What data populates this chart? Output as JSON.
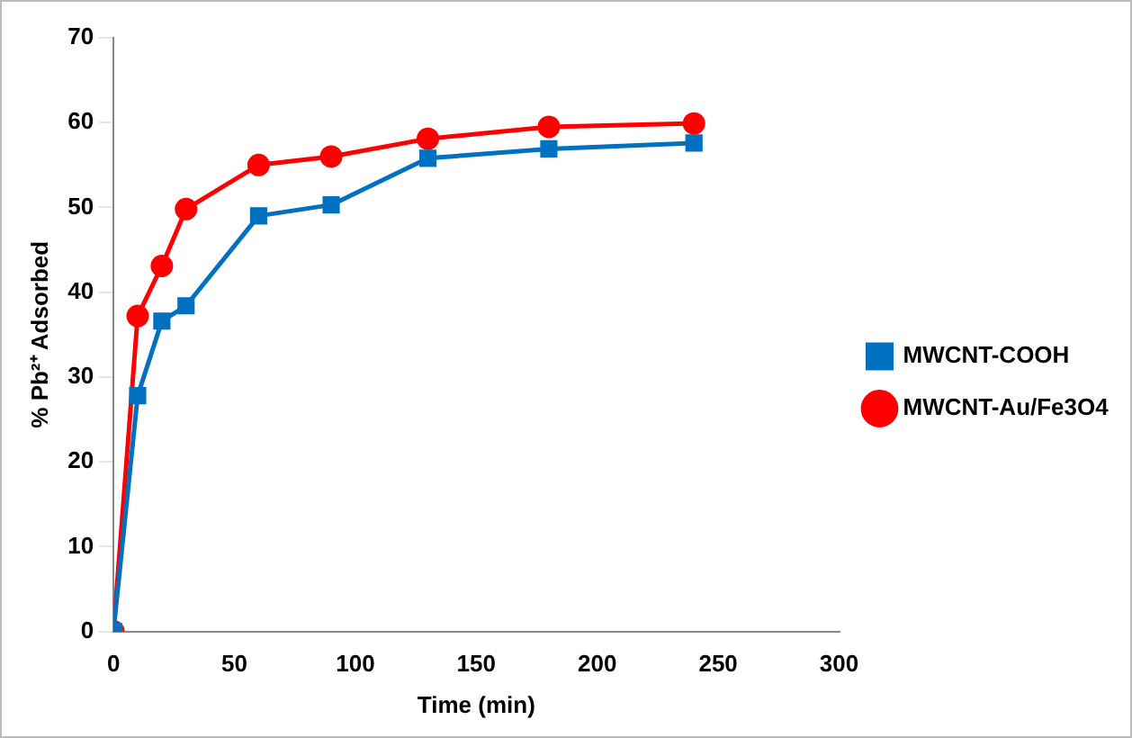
{
  "chart_data": {
    "type": "line",
    "xlabel": "Time (min)",
    "ylabel": "% Pb²⁺ Adsorbed",
    "x": [
      0,
      10,
      20,
      30,
      60,
      90,
      130,
      180,
      240
    ],
    "series": [
      {
        "name": "MWCNT-COOH",
        "color": "#0070c0",
        "marker": "square",
        "values": [
          0,
          27.8,
          36.6,
          38.4,
          49.0,
          50.3,
          55.8,
          56.9,
          57.6
        ]
      },
      {
        "name": "MWCNT-Au/Fe3O4",
        "color": "#ff0000",
        "marker": "circle",
        "values": [
          0,
          37.2,
          43.1,
          49.8,
          55.0,
          56.0,
          58.1,
          59.5,
          59.9
        ]
      }
    ],
    "xlim": [
      0,
      300
    ],
    "xticks": [
      0,
      50,
      100,
      150,
      200,
      250,
      300
    ],
    "ylim": [
      0,
      70
    ],
    "yticks": [
      0,
      10,
      20,
      30,
      40,
      50,
      60,
      70
    ],
    "grid": false,
    "legend": "right",
    "line_style": "solid"
  }
}
